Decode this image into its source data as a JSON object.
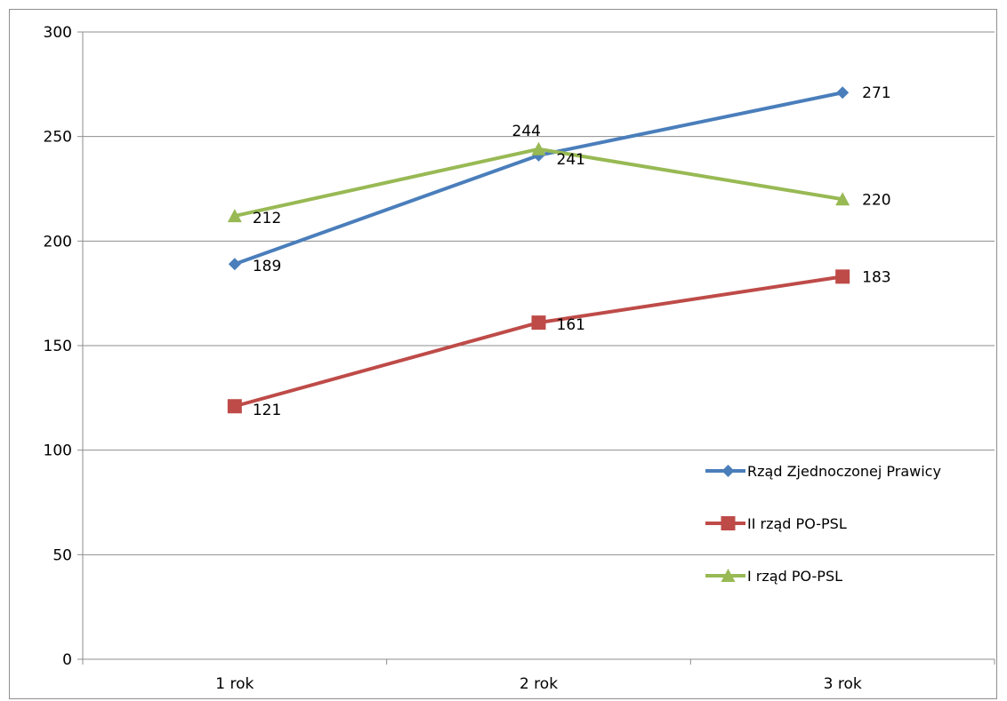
{
  "chart_data": {
    "type": "line",
    "categories": [
      "1 rok",
      "2 rok",
      "3 rok"
    ],
    "ylim": [
      0,
      300
    ],
    "yticks": [
      0,
      50,
      100,
      150,
      200,
      250,
      300
    ],
    "grid": true,
    "legend_position": "right",
    "series": [
      {
        "name": "Rząd Zjednoczonej Prawicy",
        "values": [
          189,
          241,
          271
        ],
        "color": "#4a7ebb",
        "marker": "diamond"
      },
      {
        "name": "II rząd PO-PSL",
        "values": [
          121,
          161,
          183
        ],
        "color": "#be4b48",
        "marker": "square"
      },
      {
        "name": "I rząd PO-PSL",
        "values": [
          212,
          244,
          220
        ],
        "color": "#98b954",
        "marker": "triangle"
      }
    ],
    "data_labels": [
      {
        "series": 0,
        "point": 0,
        "text": "189"
      },
      {
        "series": 0,
        "point": 1,
        "text": "241"
      },
      {
        "series": 0,
        "point": 2,
        "text": "271"
      },
      {
        "series": 1,
        "point": 0,
        "text": "121"
      },
      {
        "series": 1,
        "point": 1,
        "text": "161"
      },
      {
        "series": 1,
        "point": 2,
        "text": "183"
      },
      {
        "series": 2,
        "point": 0,
        "text": "212"
      },
      {
        "series": 2,
        "point": 1,
        "text": "244"
      },
      {
        "series": 2,
        "point": 2,
        "text": "220"
      }
    ]
  }
}
